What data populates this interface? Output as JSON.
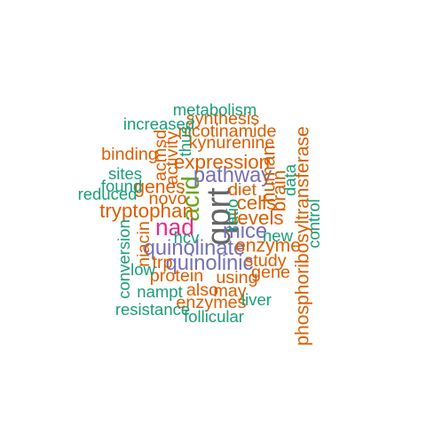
{
  "palette": {
    "teal": "#1b9e77",
    "orange": "#d95f02",
    "purple": "#7570b3",
    "magenta": "#e7298a",
    "green": "#66a61e",
    "gray": "#666666"
  },
  "words": [
    {
      "id": "qprt",
      "text": "qprt",
      "weight": 1.0,
      "color": "gray",
      "vertical": true
    },
    {
      "id": "acid",
      "text": "acid",
      "weight": 0.62,
      "color": "green",
      "vertical": true
    },
    {
      "id": "nad",
      "text": "nad",
      "weight": 0.55,
      "color": "magenta",
      "vertical": false
    },
    {
      "id": "mice",
      "text": "mice",
      "weight": 0.45,
      "color": "purple",
      "vertical": false
    },
    {
      "id": "pathway",
      "text": "pathway",
      "weight": 0.45,
      "color": "purple",
      "vertical": false
    },
    {
      "id": "quinolinate",
      "text": "quinolinate",
      "weight": 0.45,
      "color": "purple",
      "vertical": false
    },
    {
      "id": "quinolinic",
      "text": "quinolinic",
      "weight": 0.45,
      "color": "purple",
      "vertical": false
    },
    {
      "id": "expression",
      "text": "expression",
      "weight": 0.4,
      "color": "orange",
      "vertical": false
    },
    {
      "id": "tryptophan",
      "text": "tryptophan",
      "weight": 0.4,
      "color": "orange",
      "vertical": false
    },
    {
      "id": "levels",
      "text": "levels",
      "weight": 0.4,
      "color": "orange",
      "vertical": false
    },
    {
      "id": "cells",
      "text": "cells",
      "weight": 0.4,
      "color": "orange",
      "vertical": false
    },
    {
      "id": "genes",
      "text": "genes",
      "weight": 0.35,
      "color": "orange",
      "vertical": false
    },
    {
      "id": "enzyme",
      "text": "enzyme",
      "weight": 0.35,
      "color": "orange",
      "vertical": false
    },
    {
      "id": "phosphoribosyltransferase",
      "text": "phosphoribosyltransferase",
      "weight": 0.35,
      "color": "orange",
      "vertical": true
    },
    {
      "id": "human",
      "text": "human",
      "weight": 0.35,
      "color": "orange",
      "vertical": true
    },
    {
      "id": "brain",
      "text": "brain",
      "weight": 0.35,
      "color": "orange",
      "vertical": true
    },
    {
      "id": "nicotinamide",
      "text": "nicotinamide",
      "weight": 0.3,
      "color": "orange",
      "vertical": false
    },
    {
      "id": "kynurenine",
      "text": "kynurenine",
      "weight": 0.3,
      "color": "orange",
      "vertical": false
    },
    {
      "id": "synthesis",
      "text": "synthesis",
      "weight": 0.3,
      "color": "orange",
      "vertical": false
    },
    {
      "id": "binding",
      "text": "binding",
      "weight": 0.3,
      "color": "orange",
      "vertical": false
    },
    {
      "id": "novo",
      "text": "novo",
      "weight": 0.3,
      "color": "orange",
      "vertical": false
    },
    {
      "id": "diet",
      "text": "diet",
      "weight": 0.3,
      "color": "orange",
      "vertical": false
    },
    {
      "id": "study",
      "text": "study",
      "weight": 0.3,
      "color": "orange",
      "vertical": false
    },
    {
      "id": "gene",
      "text": "gene",
      "weight": 0.3,
      "color": "orange",
      "vertical": false
    },
    {
      "id": "protein",
      "text": "protein",
      "weight": 0.3,
      "color": "orange",
      "vertical": false
    },
    {
      "id": "using",
      "text": "using",
      "weight": 0.3,
      "color": "orange",
      "vertical": false
    },
    {
      "id": "may",
      "text": "may",
      "weight": 0.3,
      "color": "orange",
      "vertical": false
    },
    {
      "id": "enzymes",
      "text": "enzymes",
      "weight": 0.3,
      "color": "orange",
      "vertical": false
    },
    {
      "id": "trp",
      "text": "trp",
      "weight": 0.3,
      "color": "orange",
      "vertical": false
    },
    {
      "id": "acmsd",
      "text": "acmsd",
      "weight": 0.3,
      "color": "orange",
      "vertical": true
    },
    {
      "id": "activity",
      "text": "activity",
      "weight": 0.3,
      "color": "orange",
      "vertical": true
    },
    {
      "id": "niacin",
      "text": "niacin",
      "weight": 0.3,
      "color": "orange",
      "vertical": true
    },
    {
      "id": "also",
      "text": "also",
      "weight": 0.3,
      "color": "orange",
      "vertical": false
    },
    {
      "id": "metabolism",
      "text": "metabolism",
      "weight": 0.25,
      "color": "teal",
      "vertical": false
    },
    {
      "id": "increased",
      "text": "increased",
      "weight": 0.25,
      "color": "teal",
      "vertical": false
    },
    {
      "id": "sites",
      "text": "sites",
      "weight": 0.25,
      "color": "teal",
      "vertical": false
    },
    {
      "id": "found",
      "text": "found",
      "weight": 0.25,
      "color": "teal",
      "vertical": false
    },
    {
      "id": "reduced",
      "text": "reduced",
      "weight": 0.25,
      "color": "teal",
      "vertical": false
    },
    {
      "id": "hcv",
      "text": "hcv",
      "weight": 0.25,
      "color": "teal",
      "vertical": false
    },
    {
      "id": "low",
      "text": "low",
      "weight": 0.25,
      "color": "teal",
      "vertical": false
    },
    {
      "id": "new",
      "text": "new",
      "weight": 0.25,
      "color": "teal",
      "vertical": false
    },
    {
      "id": "nampt",
      "text": "nampt",
      "weight": 0.25,
      "color": "teal",
      "vertical": false
    },
    {
      "id": "resistance",
      "text": "resistance",
      "weight": 0.25,
      "color": "teal",
      "vertical": false
    },
    {
      "id": "follicular",
      "text": "follicular",
      "weight": 0.25,
      "color": "teal",
      "vertical": false
    },
    {
      "id": "liver",
      "text": "liver",
      "weight": 0.25,
      "color": "teal",
      "vertical": false
    },
    {
      "id": "thus",
      "text": "thus",
      "weight": 0.25,
      "color": "teal",
      "vertical": true
    },
    {
      "id": "ratio",
      "text": "ratio",
      "weight": 0.25,
      "color": "teal",
      "vertical": true
    },
    {
      "id": "data",
      "text": "data",
      "weight": 0.25,
      "color": "teal",
      "vertical": true
    },
    {
      "id": "conversion",
      "text": "conversion",
      "weight": 0.25,
      "color": "teal",
      "vertical": true
    },
    {
      "id": "control",
      "text": "control",
      "weight": 0.25,
      "color": "teal",
      "vertical": true
    }
  ]
}
